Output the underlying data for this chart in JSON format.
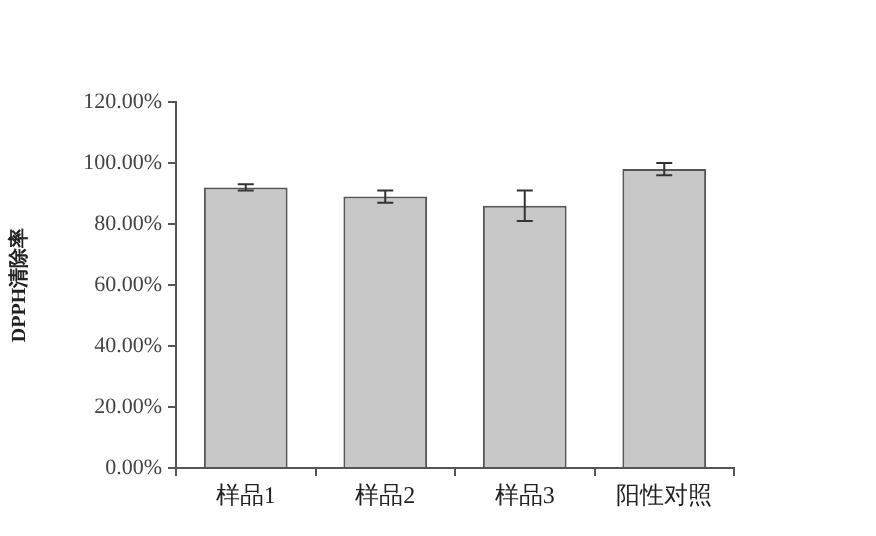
{
  "chart_data": {
    "type": "bar",
    "ylabel": "DPPH清除率",
    "categories": [
      "样品1",
      "样品2",
      "样品3",
      "阳性对照"
    ],
    "values": [
      92,
      89,
      86,
      98
    ],
    "errors": [
      1,
      2,
      5,
      2
    ],
    "color": "#c8c8c8",
    "ylim": [
      0,
      120
    ],
    "yticks": [
      {
        "value": 0,
        "label": "0.00%"
      },
      {
        "value": 20,
        "label": "20.00%"
      },
      {
        "value": 40,
        "label": "40.00%"
      },
      {
        "value": 60,
        "label": "60.00%"
      },
      {
        "value": 80,
        "label": "80.00%"
      },
      {
        "value": 100,
        "label": "100.00%"
      },
      {
        "value": 120,
        "label": "120.00%"
      }
    ],
    "grid": false,
    "legend": false
  }
}
